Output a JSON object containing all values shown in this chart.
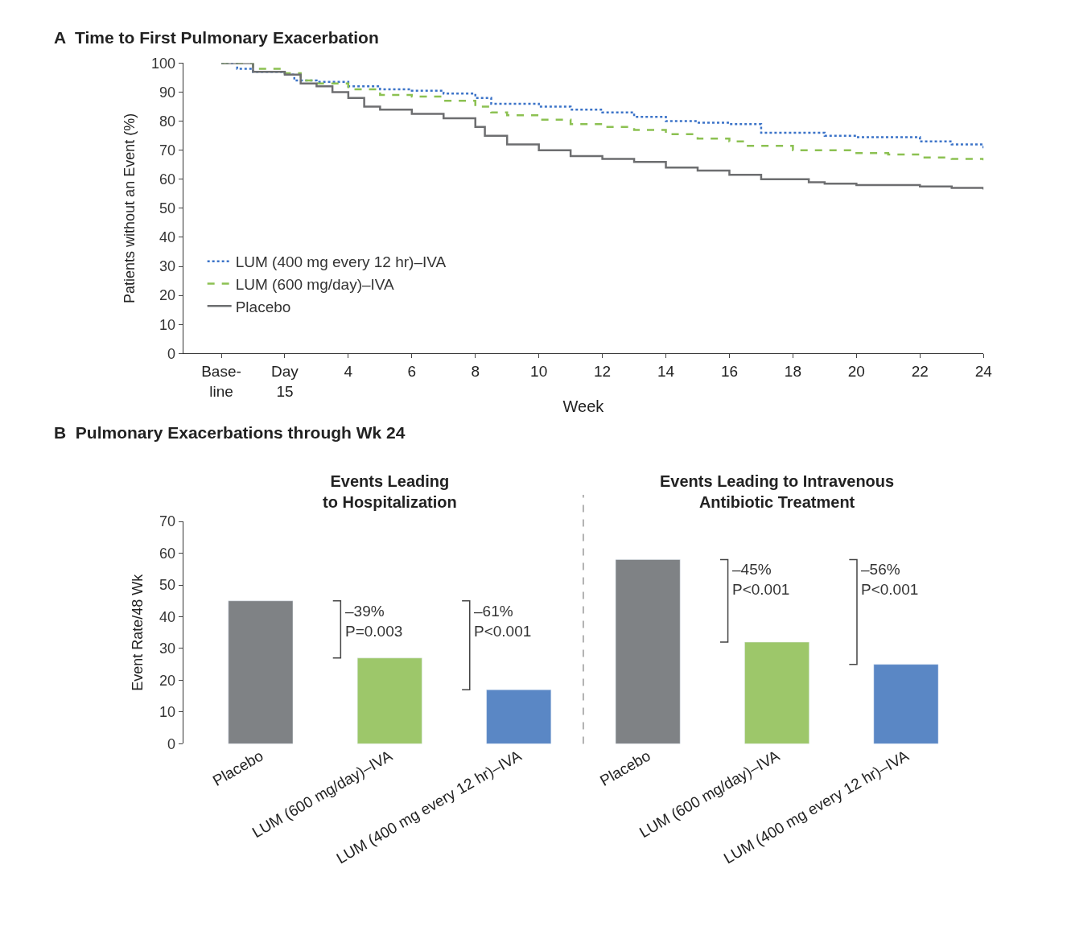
{
  "chart_data": [
    {
      "type": "step",
      "title": "A  Time to First Pulmonary Exacerbation",
      "xlabel": "Week",
      "ylabel": "Patients without an Event (%)",
      "xlim": [
        -1.2,
        24
      ],
      "xticks": [
        {
          "value": 0,
          "label": "Base-\nline"
        },
        {
          "value": 2,
          "label": "Day\n15"
        },
        4,
        6,
        8,
        10,
        12,
        14,
        16,
        18,
        20,
        22,
        24
      ],
      "ylim": [
        0,
        100
      ],
      "yticks": [
        0,
        10,
        20,
        30,
        40,
        50,
        60,
        70,
        80,
        90,
        100
      ],
      "legend": "bottom left",
      "series": [
        {
          "name": "LUM (400 mg every 12 hr)–IVA",
          "color": "#3b73c8",
          "line_style": "dotted",
          "x": [
            0,
            0.5,
            1,
            2,
            2.3,
            3,
            4,
            5,
            6,
            7,
            8,
            8.5,
            10,
            11,
            12,
            13,
            14,
            15,
            16,
            17,
            18,
            19,
            20,
            21,
            22,
            23,
            24
          ],
          "values": [
            100,
            98,
            97,
            96,
            94,
            93.5,
            92,
            91,
            90.5,
            89.5,
            88,
            86,
            85,
            84,
            83,
            81.5,
            80,
            79.5,
            79,
            76,
            76,
            75,
            74.5,
            74.5,
            73,
            72,
            70.5
          ]
        },
        {
          "name": "LUM (600 mg/day)–IVA",
          "color": "#8cc152",
          "line_style": "dashed",
          "x": [
            0,
            1,
            2,
            2.5,
            3,
            4,
            5,
            6,
            7,
            8,
            8.5,
            9,
            10,
            11,
            12,
            13,
            14,
            15,
            16,
            16.5,
            17,
            18,
            19,
            20,
            21,
            22,
            23,
            24
          ],
          "values": [
            100,
            98,
            96.5,
            94,
            93,
            91,
            89,
            88.5,
            87,
            85,
            83,
            82,
            80.5,
            79,
            78,
            77,
            75.5,
            74,
            73,
            71.5,
            71.5,
            70,
            70,
            69,
            68.5,
            67.5,
            67,
            66.5
          ]
        },
        {
          "name": "Placebo",
          "color": "#6d6e70",
          "line_style": "solid",
          "x": [
            0,
            1,
            2,
            2.5,
            3,
            3.5,
            4,
            4.5,
            5,
            6,
            7,
            8,
            8.3,
            9,
            10,
            11,
            12,
            13,
            14,
            15,
            16,
            17,
            18,
            18.5,
            19,
            20,
            21,
            22,
            23,
            24
          ],
          "values": [
            100,
            97,
            96,
            93,
            92,
            90,
            88,
            85,
            84,
            82.5,
            81,
            78,
            75,
            72,
            70,
            68,
            67,
            66,
            64,
            63,
            61.5,
            60,
            60,
            59,
            58.5,
            58,
            58,
            57.5,
            57,
            56.5
          ]
        }
      ]
    },
    {
      "type": "bar",
      "title": "B  Pulmonary Exacerbations through Wk 24",
      "ylabel": "Event Rate/48 Wk",
      "categories": [
        "Placebo",
        "LUM (600 mg/day)–IVA",
        "LUM (400 mg every 12 hr)–IVA",
        "Placebo",
        "LUM (600 mg/day)–IVA",
        "LUM (400 mg every 12 hr)–IVA"
      ],
      "values": [
        45,
        27,
        17,
        58,
        32,
        25
      ],
      "colors": [
        "#7f8285",
        "#9dc76a",
        "#5a87c5",
        "#7f8285",
        "#9dc76a",
        "#5a87c5"
      ],
      "ylim": [
        0,
        70
      ],
      "yticks": [
        0,
        10,
        20,
        30,
        40,
        50,
        60,
        70
      ],
      "annotations": [
        "Events Leading\nto Hospitalization",
        "Events Leading to Intravenous\nAntibiotic Treatment",
        "–39%\nP=0.003",
        "–61%\nP<0.001",
        "–45%\nP<0.001",
        "–56%\nP<0.001"
      ]
    }
  ]
}
